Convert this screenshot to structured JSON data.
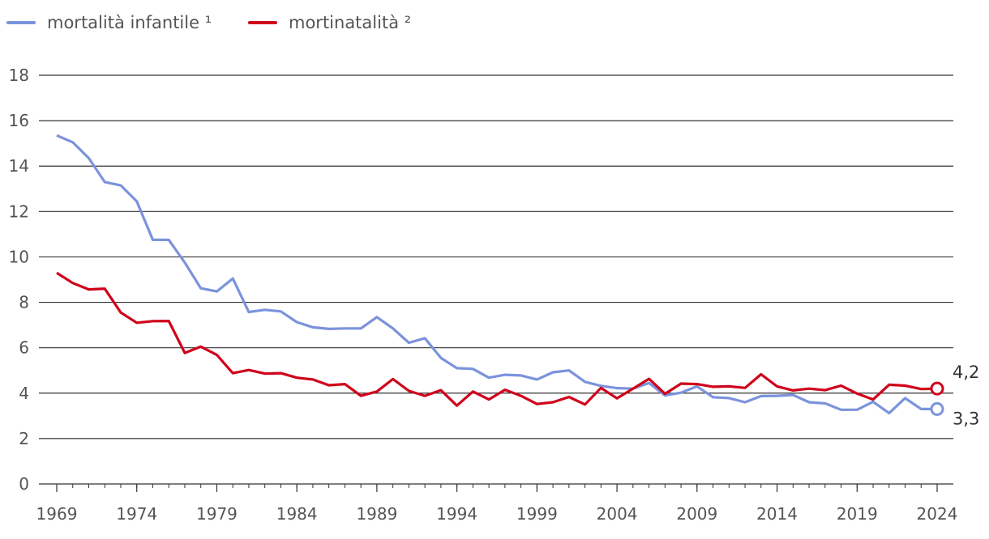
{
  "chart_data": {
    "type": "line",
    "title": "",
    "xlabel": "",
    "ylabel": "",
    "ylim": [
      0,
      18
    ],
    "yticks": [
      0,
      2,
      4,
      6,
      8,
      10,
      12,
      14,
      16,
      18
    ],
    "xlim": [
      1969,
      2024
    ],
    "xticks": [
      1969,
      1974,
      1979,
      1984,
      1989,
      1994,
      1999,
      2004,
      2009,
      2014,
      2019,
      2024
    ],
    "grid": true,
    "legend_position": "top-left",
    "x": [
      1969,
      1970,
      1971,
      1972,
      1973,
      1974,
      1975,
      1976,
      1977,
      1978,
      1979,
      1980,
      1981,
      1982,
      1983,
      1984,
      1985,
      1986,
      1987,
      1988,
      1989,
      1990,
      1991,
      1992,
      1993,
      1994,
      1995,
      1996,
      1997,
      1998,
      1999,
      2000,
      2001,
      2002,
      2003,
      2004,
      2005,
      2006,
      2007,
      2008,
      2009,
      2010,
      2011,
      2012,
      2013,
      2014,
      2015,
      2016,
      2017,
      2018,
      2019,
      2020,
      2021,
      2022,
      2023,
      2024
    ],
    "series": [
      {
        "name": "mortalità infantile ¹",
        "color": "#7b93dc",
        "end_label": "3,3",
        "values": [
          15.35,
          15.05,
          14.35,
          13.3,
          13.15,
          12.45,
          10.75,
          10.75,
          9.75,
          8.62,
          8.48,
          9.05,
          7.57,
          7.67,
          7.6,
          7.13,
          6.9,
          6.83,
          6.85,
          6.85,
          7.35,
          6.85,
          6.22,
          6.42,
          5.55,
          5.1,
          5.07,
          4.68,
          4.81,
          4.78,
          4.6,
          4.92,
          5.0,
          4.5,
          4.32,
          4.22,
          4.2,
          4.45,
          3.9,
          4.02,
          4.3,
          3.82,
          3.78,
          3.6,
          3.87,
          3.88,
          3.92,
          3.6,
          3.55,
          3.27,
          3.27,
          3.62,
          3.12,
          3.78,
          3.3,
          3.3
        ]
      },
      {
        "name": "mortinatalità ²",
        "color": "#d0021b",
        "end_label": "4,2",
        "values": [
          9.3,
          8.85,
          8.57,
          8.6,
          7.55,
          7.1,
          7.17,
          7.18,
          5.77,
          6.05,
          5.68,
          4.88,
          5.02,
          4.86,
          4.88,
          4.68,
          4.6,
          4.35,
          4.4,
          3.88,
          4.07,
          4.62,
          4.1,
          3.88,
          4.13,
          3.45,
          4.07,
          3.72,
          4.15,
          3.88,
          3.52,
          3.6,
          3.83,
          3.5,
          4.23,
          3.77,
          4.2,
          4.63,
          3.97,
          4.42,
          4.4,
          4.28,
          4.3,
          4.23,
          4.83,
          4.3,
          4.12,
          4.2,
          4.13,
          4.33,
          3.98,
          3.72,
          4.37,
          4.33,
          4.18,
          4.2
        ]
      }
    ]
  }
}
